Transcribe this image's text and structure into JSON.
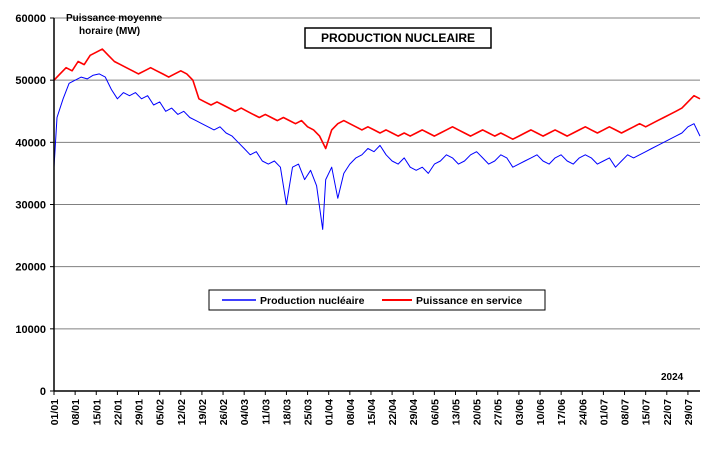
{
  "chart_data": {
    "type": "line",
    "title": "PRODUCTION NUCLEAIRE",
    "ylabel_line1": "Puissance moyenne",
    "ylabel_line2": "horaire (MW)",
    "year_label": "2024",
    "ylim": [
      0,
      60000
    ],
    "yticks": [
      "0",
      "10000",
      "20000",
      "30000",
      "40000",
      "50000",
      "60000"
    ],
    "ytick_values": [
      0,
      10000,
      20000,
      30000,
      40000,
      50000,
      60000
    ],
    "xlim_days": [
      0,
      214
    ],
    "xtick_labels": [
      "01/01",
      "08/01",
      "15/01",
      "22/01",
      "29/01",
      "05/02",
      "12/02",
      "19/02",
      "26/02",
      "04/03",
      "11/03",
      "18/03",
      "25/03",
      "01/04",
      "08/04",
      "15/04",
      "22/04",
      "29/04",
      "06/05",
      "13/05",
      "20/05",
      "27/05",
      "03/06",
      "10/06",
      "17/06",
      "24/06",
      "01/07",
      "08/07",
      "15/07",
      "22/07",
      "29/07"
    ],
    "grid": "horizontal",
    "legend_position": "center",
    "series": [
      {
        "name": "Production nucléaire",
        "color": "#0000ff",
        "points": [
          [
            0,
            36000
          ],
          [
            1,
            44000
          ],
          [
            3,
            47000
          ],
          [
            5,
            49500
          ],
          [
            7,
            50000
          ],
          [
            9,
            50500
          ],
          [
            11,
            50200
          ],
          [
            13,
            50800
          ],
          [
            15,
            51000
          ],
          [
            17,
            50500
          ],
          [
            19,
            48500
          ],
          [
            21,
            47000
          ],
          [
            23,
            48000
          ],
          [
            25,
            47500
          ],
          [
            27,
            48000
          ],
          [
            29,
            47000
          ],
          [
            31,
            47500
          ],
          [
            33,
            46000
          ],
          [
            35,
            46500
          ],
          [
            37,
            45000
          ],
          [
            39,
            45500
          ],
          [
            41,
            44500
          ],
          [
            43,
            45000
          ],
          [
            45,
            44000
          ],
          [
            47,
            43500
          ],
          [
            49,
            43000
          ],
          [
            51,
            42500
          ],
          [
            53,
            42000
          ],
          [
            55,
            42500
          ],
          [
            57,
            41500
          ],
          [
            59,
            41000
          ],
          [
            61,
            40000
          ],
          [
            63,
            39000
          ],
          [
            65,
            38000
          ],
          [
            67,
            38500
          ],
          [
            69,
            37000
          ],
          [
            71,
            36500
          ],
          [
            73,
            37000
          ],
          [
            75,
            36000
          ],
          [
            77,
            30000
          ],
          [
            79,
            36000
          ],
          [
            81,
            36500
          ],
          [
            83,
            34000
          ],
          [
            85,
            35500
          ],
          [
            87,
            33000
          ],
          [
            89,
            26000
          ],
          [
            90,
            34000
          ],
          [
            92,
            36000
          ],
          [
            94,
            31000
          ],
          [
            96,
            35000
          ],
          [
            98,
            36500
          ],
          [
            100,
            37500
          ],
          [
            102,
            38000
          ],
          [
            104,
            39000
          ],
          [
            106,
            38500
          ],
          [
            108,
            39500
          ],
          [
            110,
            38000
          ],
          [
            112,
            37000
          ],
          [
            114,
            36500
          ],
          [
            116,
            37500
          ],
          [
            118,
            36000
          ],
          [
            120,
            35500
          ],
          [
            122,
            36000
          ],
          [
            124,
            35000
          ],
          [
            126,
            36500
          ],
          [
            128,
            37000
          ],
          [
            130,
            38000
          ],
          [
            132,
            37500
          ],
          [
            134,
            36500
          ],
          [
            136,
            37000
          ],
          [
            138,
            38000
          ],
          [
            140,
            38500
          ],
          [
            142,
            37500
          ],
          [
            144,
            36500
          ],
          [
            146,
            37000
          ],
          [
            148,
            38000
          ],
          [
            150,
            37500
          ],
          [
            152,
            36000
          ],
          [
            154,
            36500
          ],
          [
            156,
            37000
          ],
          [
            158,
            37500
          ],
          [
            160,
            38000
          ],
          [
            162,
            37000
          ],
          [
            164,
            36500
          ],
          [
            166,
            37500
          ],
          [
            168,
            38000
          ],
          [
            170,
            37000
          ],
          [
            172,
            36500
          ],
          [
            174,
            37500
          ],
          [
            176,
            38000
          ],
          [
            178,
            37500
          ],
          [
            180,
            36500
          ],
          [
            182,
            37000
          ],
          [
            184,
            37500
          ],
          [
            186,
            36000
          ],
          [
            188,
            37000
          ],
          [
            190,
            38000
          ],
          [
            192,
            37500
          ],
          [
            194,
            38000
          ],
          [
            196,
            38500
          ],
          [
            198,
            39000
          ],
          [
            200,
            39500
          ],
          [
            202,
            40000
          ],
          [
            204,
            40500
          ],
          [
            206,
            41000
          ],
          [
            208,
            41500
          ],
          [
            210,
            42500
          ],
          [
            212,
            43000
          ],
          [
            214,
            41000
          ]
        ]
      },
      {
        "name": "Puissance en service",
        "color": "#ff0000",
        "points": [
          [
            0,
            50000
          ],
          [
            2,
            51000
          ],
          [
            4,
            52000
          ],
          [
            6,
            51500
          ],
          [
            8,
            53000
          ],
          [
            10,
            52500
          ],
          [
            12,
            54000
          ],
          [
            14,
            54500
          ],
          [
            16,
            55000
          ],
          [
            18,
            54000
          ],
          [
            20,
            53000
          ],
          [
            22,
            52500
          ],
          [
            24,
            52000
          ],
          [
            26,
            51500
          ],
          [
            28,
            51000
          ],
          [
            30,
            51500
          ],
          [
            32,
            52000
          ],
          [
            34,
            51500
          ],
          [
            36,
            51000
          ],
          [
            38,
            50500
          ],
          [
            40,
            51000
          ],
          [
            42,
            51500
          ],
          [
            44,
            51000
          ],
          [
            46,
            50000
          ],
          [
            48,
            47000
          ],
          [
            50,
            46500
          ],
          [
            52,
            46000
          ],
          [
            54,
            46500
          ],
          [
            56,
            46000
          ],
          [
            58,
            45500
          ],
          [
            60,
            45000
          ],
          [
            62,
            45500
          ],
          [
            64,
            45000
          ],
          [
            66,
            44500
          ],
          [
            68,
            44000
          ],
          [
            70,
            44500
          ],
          [
            72,
            44000
          ],
          [
            74,
            43500
          ],
          [
            76,
            44000
          ],
          [
            78,
            43500
          ],
          [
            80,
            43000
          ],
          [
            82,
            43500
          ],
          [
            84,
            42500
          ],
          [
            86,
            42000
          ],
          [
            88,
            41000
          ],
          [
            90,
            39000
          ],
          [
            92,
            42000
          ],
          [
            94,
            43000
          ],
          [
            96,
            43500
          ],
          [
            98,
            43000
          ],
          [
            100,
            42500
          ],
          [
            102,
            42000
          ],
          [
            104,
            42500
          ],
          [
            106,
            42000
          ],
          [
            108,
            41500
          ],
          [
            110,
            42000
          ],
          [
            112,
            41500
          ],
          [
            114,
            41000
          ],
          [
            116,
            41500
          ],
          [
            118,
            41000
          ],
          [
            120,
            41500
          ],
          [
            122,
            42000
          ],
          [
            124,
            41500
          ],
          [
            126,
            41000
          ],
          [
            128,
            41500
          ],
          [
            130,
            42000
          ],
          [
            132,
            42500
          ],
          [
            134,
            42000
          ],
          [
            136,
            41500
          ],
          [
            138,
            41000
          ],
          [
            140,
            41500
          ],
          [
            142,
            42000
          ],
          [
            144,
            41500
          ],
          [
            146,
            41000
          ],
          [
            148,
            41500
          ],
          [
            150,
            41000
          ],
          [
            152,
            40500
          ],
          [
            154,
            41000
          ],
          [
            156,
            41500
          ],
          [
            158,
            42000
          ],
          [
            160,
            41500
          ],
          [
            162,
            41000
          ],
          [
            164,
            41500
          ],
          [
            166,
            42000
          ],
          [
            168,
            41500
          ],
          [
            170,
            41000
          ],
          [
            172,
            41500
          ],
          [
            174,
            42000
          ],
          [
            176,
            42500
          ],
          [
            178,
            42000
          ],
          [
            180,
            41500
          ],
          [
            182,
            42000
          ],
          [
            184,
            42500
          ],
          [
            186,
            42000
          ],
          [
            188,
            41500
          ],
          [
            190,
            42000
          ],
          [
            192,
            42500
          ],
          [
            194,
            43000
          ],
          [
            196,
            42500
          ],
          [
            198,
            43000
          ],
          [
            200,
            43500
          ],
          [
            202,
            44000
          ],
          [
            204,
            44500
          ],
          [
            206,
            45000
          ],
          [
            208,
            45500
          ],
          [
            210,
            46500
          ],
          [
            212,
            47500
          ],
          [
            214,
            47000
          ]
        ]
      }
    ]
  }
}
